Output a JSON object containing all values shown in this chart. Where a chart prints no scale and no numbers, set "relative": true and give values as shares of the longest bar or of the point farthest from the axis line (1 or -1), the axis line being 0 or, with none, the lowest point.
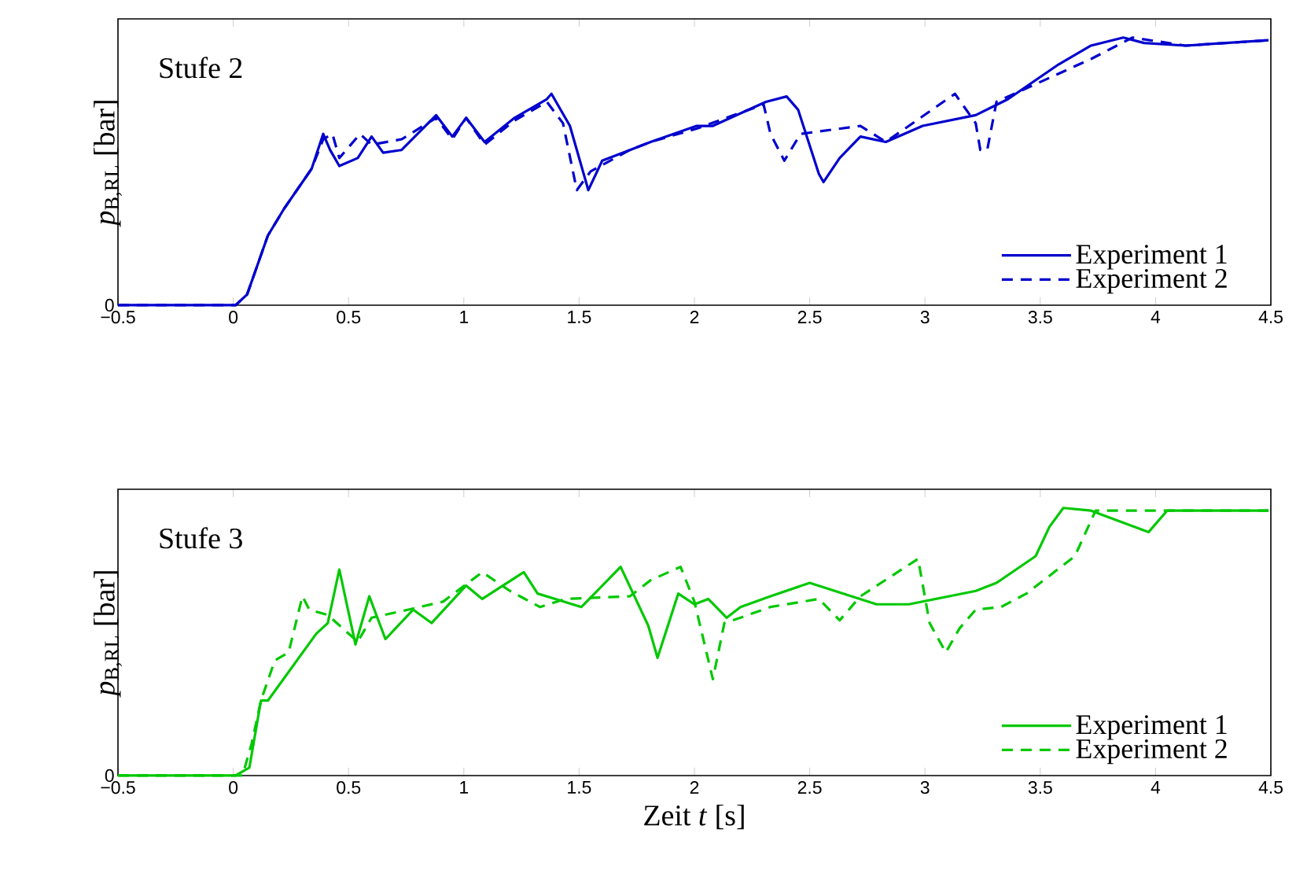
{
  "chart_data": [
    {
      "type": "line",
      "title": "Stufe 2",
      "ylabel": "*p*$_{B,RL}$ [bar]",
      "relative": true,
      "legend": "bottom right",
      "annotations": [
        "0"
      ],
      "xlim": [
        -0.5,
        4.5
      ],
      "xticks": [
        {
          "value": -0.5,
          "label": "−0.5"
        },
        0,
        0.5,
        1,
        1.5,
        2,
        2.5,
        3,
        3.5,
        4,
        4.5
      ],
      "series": [
        {
          "name": "Experiment 1",
          "color": "#0000cd",
          "line_style": "solid",
          "x": [
            -0.5,
            0.01,
            0.06,
            0.15,
            0.22,
            0.34,
            0.39,
            0.42,
            0.46,
            0.54,
            0.6,
            0.65,
            0.73,
            0.88,
            0.95,
            1.01,
            1.09,
            1.22,
            1.36,
            1.38,
            1.46,
            1.54,
            1.6,
            1.72,
            1.81,
            2.01,
            2.08,
            2.31,
            2.4,
            2.45,
            2.54,
            2.56,
            2.63,
            2.72,
            2.83,
            2.99,
            3.22,
            3.36,
            3.58,
            3.72,
            3.86,
            3.95,
            4.13,
            4.49
          ],
          "values": [
            0,
            0,
            0.04,
            0.26,
            0.36,
            0.51,
            0.64,
            0.58,
            0.52,
            0.55,
            0.63,
            0.57,
            0.58,
            0.71,
            0.63,
            0.7,
            0.61,
            0.7,
            0.77,
            0.79,
            0.67,
            0.43,
            0.54,
            0.58,
            0.61,
            0.67,
            0.67,
            0.76,
            0.78,
            0.73,
            0.49,
            0.46,
            0.55,
            0.63,
            0.61,
            0.67,
            0.71,
            0.77,
            0.9,
            0.97,
            1.0,
            0.98,
            0.97,
            0.99
          ]
        },
        {
          "name": "Experiment 2",
          "color": "#0000cd",
          "line_style": "dashed",
          "x": [
            -0.5,
            0.01,
            0.06,
            0.15,
            0.22,
            0.34,
            0.39,
            0.43,
            0.46,
            0.55,
            0.6,
            0.73,
            0.88,
            0.95,
            1.01,
            1.09,
            1.22,
            1.36,
            1.43,
            1.49,
            1.55,
            1.72,
            1.81,
            2.01,
            2.3,
            2.33,
            2.39,
            2.46,
            2.72,
            2.83,
            3.13,
            3.22,
            3.24,
            3.27,
            3.31,
            3.72,
            3.9,
            4.13,
            4.49
          ],
          "values": [
            0,
            0,
            0.04,
            0.26,
            0.36,
            0.51,
            0.62,
            0.64,
            0.55,
            0.64,
            0.6,
            0.62,
            0.7,
            0.62,
            0.7,
            0.6,
            0.69,
            0.76,
            0.68,
            0.43,
            0.5,
            0.58,
            0.61,
            0.66,
            0.75,
            0.64,
            0.54,
            0.64,
            0.67,
            0.61,
            0.79,
            0.68,
            0.58,
            0.58,
            0.76,
            0.92,
            1.0,
            0.97,
            0.99
          ]
        }
      ]
    },
    {
      "type": "line",
      "title": "Stufe 3",
      "ylabel": "*p*$_{B,RL}$ [bar]",
      "xlabel": "Zeit *t* [s]",
      "relative": true,
      "legend": "bottom right",
      "annotations": [
        "0"
      ],
      "xlim": [
        -0.5,
        4.5
      ],
      "xticks": [
        {
          "value": -0.5,
          "label": "−0.5"
        },
        0,
        0.5,
        1,
        1.5,
        2,
        2.5,
        3,
        3.5,
        4,
        4.5
      ],
      "series": [
        {
          "name": "Experiment 1",
          "color": "#00c800",
          "line_style": "solid",
          "x": [
            -0.5,
            0.01,
            0.07,
            0.12,
            0.15,
            0.36,
            0.41,
            0.46,
            0.53,
            0.59,
            0.66,
            0.78,
            0.86,
            1.01,
            1.08,
            1.26,
            1.32,
            1.51,
            1.68,
            1.8,
            1.84,
            1.93,
            2.0,
            2.06,
            2.14,
            2.2,
            2.33,
            2.5,
            2.79,
            2.93,
            3.22,
            3.31,
            3.48,
            3.54,
            3.6,
            3.72,
            3.97,
            4.05,
            4.49
          ],
          "values": [
            0,
            0,
            0.03,
            0.28,
            0.28,
            0.53,
            0.57,
            0.77,
            0.49,
            0.67,
            0.51,
            0.62,
            0.57,
            0.71,
            0.66,
            0.76,
            0.68,
            0.63,
            0.78,
            0.56,
            0.44,
            0.68,
            0.64,
            0.66,
            0.59,
            0.63,
            0.67,
            0.72,
            0.64,
            0.64,
            0.69,
            0.72,
            0.82,
            0.93,
            1.0,
            0.99,
            0.91,
            0.99,
            0.99
          ]
        },
        {
          "name": "Experiment 2",
          "color": "#00c800",
          "line_style": "dashed",
          "x": [
            -0.5,
            0.04,
            0.08,
            0.12,
            0.18,
            0.24,
            0.3,
            0.33,
            0.41,
            0.54,
            0.6,
            0.76,
            0.91,
            1.08,
            1.2,
            1.33,
            1.44,
            1.72,
            1.81,
            1.94,
            2.0,
            2.08,
            2.13,
            2.2,
            2.33,
            2.54,
            2.63,
            2.72,
            2.97,
            3.02,
            3.09,
            3.15,
            3.22,
            3.33,
            3.44,
            3.65,
            3.74,
            4.04,
            4.49
          ],
          "values": [
            0,
            0,
            0.12,
            0.28,
            0.43,
            0.46,
            0.67,
            0.62,
            0.6,
            0.5,
            0.59,
            0.62,
            0.65,
            0.76,
            0.69,
            0.63,
            0.66,
            0.67,
            0.73,
            0.78,
            0.65,
            0.36,
            0.57,
            0.59,
            0.63,
            0.66,
            0.58,
            0.67,
            0.81,
            0.57,
            0.46,
            0.55,
            0.62,
            0.63,
            0.68,
            0.82,
            0.99,
            0.99,
            0.99
          ]
        }
      ]
    }
  ]
}
